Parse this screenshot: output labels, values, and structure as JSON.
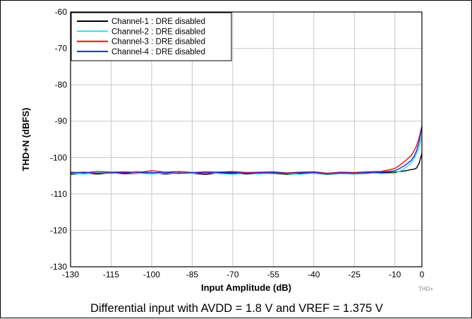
{
  "caption": "Differential input with AVDD = 1.8 V and VREF = 1.375 V",
  "watermark": "THD+",
  "chart_data": {
    "type": "line",
    "title": "",
    "xlabel": "Input Amplitude (dB)",
    "ylabel": "THD+N (dBFS)",
    "xlim": [
      -130,
      0
    ],
    "ylim": [
      -130,
      -60
    ],
    "xticks": [
      -130,
      -115,
      -100,
      -85,
      -70,
      -55,
      -40,
      -25,
      -10,
      0
    ],
    "yticks": [
      -60,
      -70,
      -80,
      -90,
      -100,
      -110,
      -120,
      -130
    ],
    "grid": true,
    "legend_position": "top-left",
    "series": [
      {
        "name": "Channel-1 : DRE disabled",
        "color": "#000000",
        "x": [
          -130,
          -125,
          -120,
          -115,
          -110,
          -105,
          -100,
          -95,
          -90,
          -85,
          -80,
          -75,
          -70,
          -65,
          -60,
          -55,
          -50,
          -45,
          -40,
          -35,
          -30,
          -25,
          -20,
          -15,
          -10,
          -8,
          -6,
          -4,
          -3,
          -2,
          -1,
          0
        ],
        "y": [
          -104.6,
          -104.3,
          -104.5,
          -104.2,
          -104.4,
          -104.3,
          -104.1,
          -104.5,
          -104.2,
          -104.3,
          -104.6,
          -104.2,
          -104.3,
          -104.5,
          -104.4,
          -104.3,
          -104.6,
          -104.4,
          -104.3,
          -104.6,
          -104.4,
          -104.5,
          -104.3,
          -104.2,
          -104.0,
          -103.8,
          -103.6,
          -103.3,
          -103.2,
          -102.9,
          -101.5,
          -98.8
        ]
      },
      {
        "name": "Channel-2 : DRE disabled",
        "color": "#33ddee",
        "x": [
          -130,
          -125,
          -120,
          -115,
          -110,
          -105,
          -100,
          -95,
          -90,
          -85,
          -80,
          -75,
          -70,
          -65,
          -60,
          -55,
          -50,
          -45,
          -40,
          -35,
          -30,
          -25,
          -20,
          -15,
          -10,
          -8,
          -6,
          -4,
          -3,
          -2,
          -1,
          0
        ],
        "y": [
          -104.3,
          -104.5,
          -104.2,
          -104.4,
          -104.1,
          -104.3,
          -104.5,
          -104.2,
          -104.4,
          -104.3,
          -104.1,
          -104.4,
          -104.6,
          -104.3,
          -104.5,
          -104.2,
          -104.4,
          -104.6,
          -104.3,
          -104.5,
          -104.4,
          -104.5,
          -104.2,
          -104.4,
          -104.3,
          -103.7,
          -102.8,
          -101.5,
          -100.5,
          -99.0,
          -97.2,
          -94.2
        ]
      },
      {
        "name": "Channel-3 : DRE disabled",
        "color": "#dd1111",
        "x": [
          -130,
          -125,
          -120,
          -115,
          -110,
          -105,
          -100,
          -95,
          -90,
          -85,
          -80,
          -75,
          -70,
          -65,
          -60,
          -55,
          -50,
          -45,
          -40,
          -35,
          -30,
          -25,
          -20,
          -15,
          -10,
          -8,
          -6,
          -4,
          -3,
          -2,
          -1,
          0
        ],
        "y": [
          -104.0,
          -104.2,
          -103.8,
          -104.0,
          -103.9,
          -104.1,
          -103.6,
          -104.0,
          -103.8,
          -104.1,
          -103.9,
          -104.0,
          -103.8,
          -104.1,
          -104.0,
          -103.9,
          -104.2,
          -104.0,
          -103.9,
          -104.3,
          -104.0,
          -104.1,
          -103.9,
          -103.8,
          -103.0,
          -102.0,
          -100.8,
          -99.5,
          -98.3,
          -96.8,
          -94.5,
          -91.3
        ]
      },
      {
        "name": "Channel-4 : DRE disabled",
        "color": "#1f2ed0",
        "x": [
          -130,
          -125,
          -120,
          -115,
          -110,
          -105,
          -100,
          -95,
          -90,
          -85,
          -80,
          -75,
          -70,
          -65,
          -60,
          -55,
          -50,
          -45,
          -40,
          -35,
          -30,
          -25,
          -20,
          -15,
          -10,
          -8,
          -6,
          -4,
          -3,
          -2,
          -1,
          0
        ],
        "y": [
          -104.2,
          -104.0,
          -104.3,
          -104.1,
          -104.2,
          -103.9,
          -104.2,
          -104.0,
          -104.3,
          -104.1,
          -104.2,
          -104.0,
          -104.1,
          -104.3,
          -104.2,
          -104.1,
          -104.3,
          -104.2,
          -104.1,
          -104.4,
          -104.2,
          -104.3,
          -104.1,
          -104.0,
          -103.6,
          -102.9,
          -102.0,
          -100.8,
          -99.8,
          -98.2,
          -95.6,
          -91.6
        ]
      }
    ]
  }
}
